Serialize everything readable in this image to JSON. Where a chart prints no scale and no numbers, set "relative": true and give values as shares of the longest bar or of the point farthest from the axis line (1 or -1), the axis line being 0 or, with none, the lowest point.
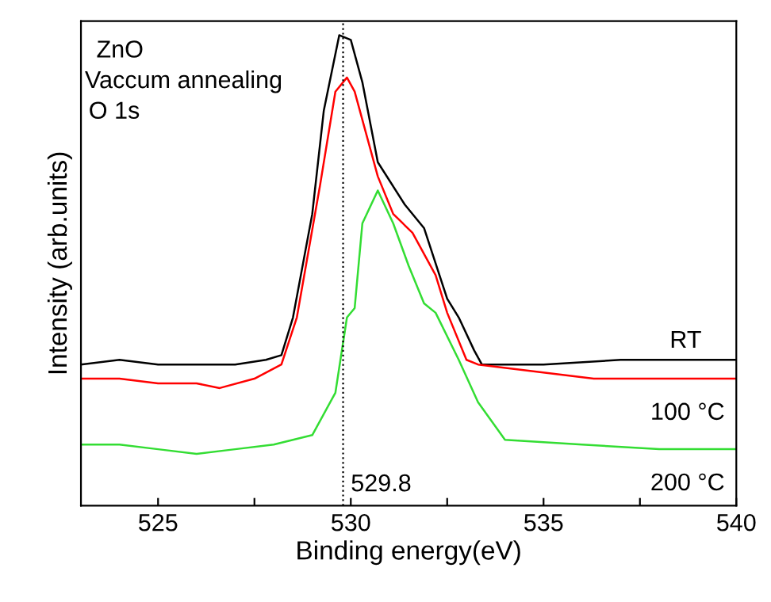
{
  "chart_data": {
    "type": "line",
    "relative": true,
    "xlabel": "Binding energy(eV)",
    "ylabel": "Intensity (arb.units)",
    "annotations": [
      "ZnO",
      "Vaccum annealing",
      "O 1s"
    ],
    "xlim": [
      523,
      540
    ],
    "xticks": [
      525,
      {
        "value": 527.5,
        "label": null
      },
      530,
      {
        "value": 532.5,
        "label": null
      },
      535,
      {
        "value": 537.5,
        "label": null
      },
      540
    ],
    "tick_labels": "x",
    "grid": false,
    "legend": false,
    "marker": "none",
    "line_style": "solid",
    "ref_lines": [
      {
        "axis": "x",
        "value": 529.8,
        "label": "529.8",
        "color": "#000000",
        "line_style": "dotted"
      }
    ],
    "series": [
      {
        "name": "RT",
        "color": "#000000",
        "x": [
          523,
          524,
          525,
          526,
          527,
          527.8,
          528.2,
          528.5,
          529.0,
          529.3,
          529.7,
          530.0,
          530.3,
          530.7,
          531.4,
          531.9,
          532.5,
          532.8,
          533.2,
          533.4,
          535,
          537,
          540
        ],
        "values": [
          0.3,
          0.31,
          0.3,
          0.3,
          0.3,
          0.31,
          0.32,
          0.4,
          0.62,
          0.84,
          1.0,
          0.99,
          0.9,
          0.73,
          0.64,
          0.59,
          0.44,
          0.4,
          0.33,
          0.3,
          0.3,
          0.31,
          0.31
        ]
      },
      {
        "name": "100 °C",
        "color": "#ff0000",
        "x": [
          523,
          524,
          525,
          526,
          526.6,
          527.5,
          528.2,
          528.6,
          529.2,
          529.6,
          529.9,
          530.1,
          530.7,
          531.1,
          531.6,
          532.2,
          532.5,
          533.0,
          533.3,
          536.3,
          538,
          540
        ],
        "values": [
          0.27,
          0.27,
          0.26,
          0.26,
          0.25,
          0.27,
          0.3,
          0.4,
          0.68,
          0.88,
          0.91,
          0.88,
          0.7,
          0.62,
          0.58,
          0.49,
          0.41,
          0.31,
          0.3,
          0.27,
          0.27,
          0.27
        ]
      },
      {
        "name": "200 °C",
        "color": "#33dd33",
        "x": [
          523,
          524,
          525,
          526,
          527,
          528,
          529.0,
          529.6,
          529.9,
          530.1,
          530.3,
          530.7,
          531.1,
          531.5,
          531.9,
          532.2,
          532.8,
          533.3,
          534.0,
          536,
          538,
          540
        ],
        "values": [
          0.13,
          0.13,
          0.12,
          0.11,
          0.12,
          0.13,
          0.15,
          0.24,
          0.4,
          0.42,
          0.6,
          0.67,
          0.6,
          0.51,
          0.43,
          0.41,
          0.31,
          0.22,
          0.14,
          0.13,
          0.12,
          0.12
        ]
      }
    ]
  }
}
